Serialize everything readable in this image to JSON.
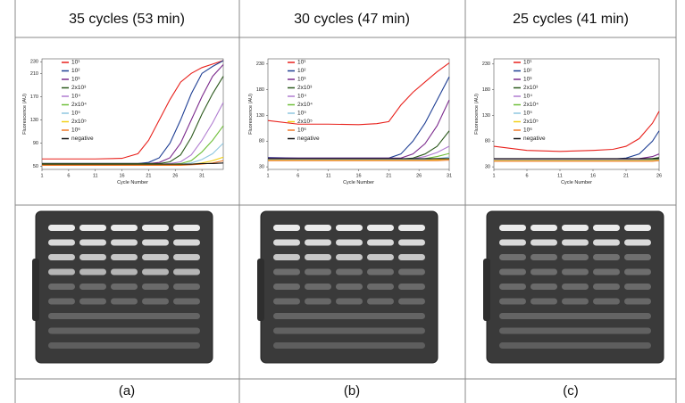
{
  "headers": [
    "35 cycles (53 min)",
    "30 cycles (47 min)",
    "25 cycles (41 min)"
  ],
  "captions": [
    "(a)",
    "(b)",
    "(c)"
  ],
  "chart_data": [
    {
      "type": "line",
      "xlabel": "Cycle Number",
      "ylabel": "Fluorescence (AU)",
      "x": [
        1,
        6,
        11,
        16,
        19,
        21,
        23,
        25,
        27,
        29,
        31,
        33,
        35
      ],
      "xlim": [
        1,
        35
      ],
      "xticks": [
        1,
        6,
        11,
        16,
        21,
        26,
        31
      ],
      "ylim": [
        45,
        235
      ],
      "yticks": [
        50,
        90,
        130,
        170,
        210,
        230
      ],
      "series": [
        {
          "name": "10¹",
          "color": "#e8211c",
          "values": [
            63,
            63,
            63,
            64,
            72,
            95,
            130,
            165,
            195,
            210,
            220,
            226,
            232
          ]
        },
        {
          "name": "10²",
          "color": "#1f3f94",
          "values": [
            55,
            55,
            55,
            55,
            55,
            57,
            65,
            90,
            130,
            175,
            210,
            222,
            232
          ]
        },
        {
          "name": "10³",
          "color": "#7b2a8c",
          "values": [
            55,
            55,
            55,
            55,
            55,
            55,
            57,
            65,
            90,
            130,
            170,
            205,
            225
          ]
        },
        {
          "name": "2x10³",
          "color": "#2d5a1e",
          "values": [
            55,
            55,
            55,
            55,
            55,
            55,
            55,
            58,
            70,
            100,
            140,
            175,
            205
          ]
        },
        {
          "name": "10⁴",
          "color": "#b07cd0",
          "values": [
            54,
            54,
            54,
            54,
            54,
            54,
            54,
            55,
            58,
            70,
            95,
            125,
            160
          ]
        },
        {
          "name": "2x10⁴",
          "color": "#6fbf3a",
          "values": [
            54,
            54,
            54,
            54,
            54,
            54,
            54,
            54,
            55,
            60,
            75,
            95,
            120
          ]
        },
        {
          "name": "10⁵",
          "color": "#8fc7e0",
          "values": [
            53,
            53,
            53,
            53,
            53,
            53,
            53,
            53,
            54,
            56,
            62,
            72,
            90
          ]
        },
        {
          "name": "2x10⁵",
          "color": "#f2d11b",
          "values": [
            53,
            53,
            53,
            53,
            53,
            53,
            53,
            53,
            53,
            54,
            56,
            60,
            66
          ]
        },
        {
          "name": "10⁶",
          "color": "#f07a2a",
          "values": [
            52,
            52,
            52,
            52,
            52,
            52,
            52,
            52,
            52,
            53,
            54,
            56,
            60
          ]
        },
        {
          "name": "negative",
          "color": "#111111",
          "values": [
            54,
            54,
            54,
            54,
            54,
            54,
            54,
            54,
            54,
            54,
            55,
            55,
            56
          ]
        }
      ]
    },
    {
      "type": "line",
      "xlabel": "Cycle Number",
      "ylabel": "Fluorescence (AU)",
      "x": [
        1,
        6,
        11,
        16,
        19,
        21,
        23,
        25,
        27,
        29,
        31
      ],
      "xlim": [
        1,
        31
      ],
      "xticks": [
        1,
        6,
        11,
        16,
        21,
        26,
        31
      ],
      "ylim": [
        25,
        240
      ],
      "yticks": [
        30,
        80,
        130,
        180,
        230
      ],
      "series": [
        {
          "name": "10¹",
          "color": "#e8211c",
          "values": [
            120,
            113,
            113,
            112,
            114,
            118,
            150,
            175,
            195,
            215,
            232
          ]
        },
        {
          "name": "10²",
          "color": "#1f3f94",
          "values": [
            48,
            47,
            47,
            47,
            47,
            47,
            55,
            80,
            115,
            160,
            205
          ]
        },
        {
          "name": "10³",
          "color": "#7b2a8c",
          "values": [
            47,
            47,
            47,
            47,
            47,
            47,
            47,
            55,
            75,
            110,
            160
          ]
        },
        {
          "name": "2x10³",
          "color": "#2d5a1e",
          "values": [
            45,
            45,
            45,
            45,
            45,
            45,
            45,
            47,
            55,
            70,
            100
          ]
        },
        {
          "name": "10⁴",
          "color": "#b07cd0",
          "values": [
            45,
            45,
            45,
            45,
            45,
            45,
            45,
            46,
            50,
            58,
            70
          ]
        },
        {
          "name": "2x10⁴",
          "color": "#6fbf3a",
          "values": [
            44,
            44,
            44,
            44,
            44,
            44,
            44,
            44,
            46,
            50,
            56
          ]
        },
        {
          "name": "10⁵",
          "color": "#8fc7e0",
          "values": [
            44,
            44,
            44,
            44,
            44,
            44,
            44,
            44,
            44,
            46,
            49
          ]
        },
        {
          "name": "2x10⁵",
          "color": "#f2d11b",
          "values": [
            43,
            43,
            43,
            43,
            43,
            43,
            43,
            43,
            43,
            44,
            45
          ]
        },
        {
          "name": "10⁶",
          "color": "#f07a2a",
          "values": [
            42,
            42,
            42,
            42,
            42,
            42,
            42,
            42,
            42,
            42,
            43
          ]
        },
        {
          "name": "negative",
          "color": "#111111",
          "values": [
            46,
            46,
            46,
            46,
            46,
            46,
            46,
            46,
            46,
            46,
            46
          ]
        }
      ]
    },
    {
      "type": "line",
      "xlabel": "Cycle Number",
      "ylabel": "Fluorescence (AU)",
      "x": [
        1,
        6,
        11,
        16,
        19,
        21,
        23,
        25,
        26
      ],
      "xlim": [
        1,
        26
      ],
      "xticks": [
        1,
        6,
        11,
        16,
        21,
        26
      ],
      "ylim": [
        25,
        240
      ],
      "yticks": [
        30,
        80,
        130,
        180,
        230
      ],
      "series": [
        {
          "name": "10¹",
          "color": "#e8211c",
          "values": [
            70,
            62,
            60,
            62,
            64,
            70,
            85,
            115,
            138
          ]
        },
        {
          "name": "10²",
          "color": "#1f3f94",
          "values": [
            45,
            45,
            45,
            45,
            45,
            47,
            55,
            80,
            100
          ]
        },
        {
          "name": "10³",
          "color": "#7b2a8c",
          "values": [
            45,
            45,
            45,
            45,
            45,
            45,
            46,
            50,
            55
          ]
        },
        {
          "name": "2x10³",
          "color": "#2d5a1e",
          "values": [
            44,
            44,
            44,
            44,
            44,
            44,
            44,
            46,
            48
          ]
        },
        {
          "name": "10⁴",
          "color": "#b07cd0",
          "values": [
            44,
            44,
            44,
            44,
            44,
            44,
            44,
            45,
            46
          ]
        },
        {
          "name": "2x10⁴",
          "color": "#6fbf3a",
          "values": [
            43,
            43,
            43,
            43,
            43,
            43,
            43,
            44,
            45
          ]
        },
        {
          "name": "10⁵",
          "color": "#8fc7e0",
          "values": [
            43,
            43,
            43,
            43,
            43,
            43,
            43,
            43,
            44
          ]
        },
        {
          "name": "2x10⁵",
          "color": "#f2d11b",
          "values": [
            42,
            42,
            42,
            42,
            42,
            42,
            42,
            42,
            43
          ]
        },
        {
          "name": "10⁶",
          "color": "#f07a2a",
          "values": [
            41,
            41,
            41,
            41,
            41,
            41,
            41,
            41,
            42
          ]
        },
        {
          "name": "negative",
          "color": "#111111",
          "values": [
            46,
            46,
            46,
            46,
            46,
            46,
            46,
            46,
            46
          ]
        }
      ]
    }
  ]
}
